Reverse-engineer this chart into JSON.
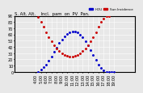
{
  "title": "S. Alt. Alt.    Incl.  pam  on  PV  Pan.",
  "legend_blue": "HOU",
  "legend_red": "Sun Incidence",
  "bg_color": "#e8e8e8",
  "plot_bg": "#e8e8e8",
  "grid_color": "#ffffff",
  "blue_color": "#0000cc",
  "red_color": "#cc0000",
  "ylim": [
    0,
    90
  ],
  "xlim": [
    0,
    23
  ],
  "xlabel_fontsize": 3.5,
  "ylabel_fontsize": 3.5,
  "title_fontsize": 3.8,
  "sun_altitude_x": [
    4.5,
    5.0,
    5.5,
    6.0,
    6.5,
    7.0,
    7.5,
    8.0,
    8.5,
    9.0,
    9.5,
    10.0,
    10.5,
    11.0,
    11.5,
    12.0,
    12.5,
    13.0,
    13.5,
    14.0,
    14.5,
    15.0,
    15.5,
    16.0,
    16.5,
    17.0,
    17.5,
    18.0,
    18.5,
    19.0
  ],
  "sun_altitude_y": [
    0,
    3,
    7,
    12,
    18,
    25,
    32,
    39,
    46,
    52,
    57,
    61,
    64,
    65,
    65,
    63,
    60,
    55,
    49,
    42,
    35,
    27,
    19,
    12,
    6,
    2,
    0,
    0,
    0,
    0
  ],
  "incidence_x": [
    4.5,
    5.0,
    5.5,
    6.0,
    6.5,
    7.0,
    7.5,
    8.0,
    8.5,
    9.0,
    9.5,
    10.0,
    10.5,
    11.0,
    11.5,
    12.0,
    12.5,
    13.0,
    13.5,
    14.0,
    14.5,
    15.0,
    15.5,
    16.0,
    16.5,
    17.0,
    17.5,
    18.0
  ],
  "incidence_y": [
    88,
    80,
    72,
    64,
    56,
    49,
    43,
    37,
    33,
    29,
    27,
    26,
    25,
    25,
    26,
    27,
    29,
    33,
    37,
    43,
    49,
    56,
    64,
    72,
    80,
    86,
    89,
    90
  ],
  "xtick_labels": [
    "4:00",
    "5:00",
    "6:00",
    "7:00",
    "8:00",
    "9:00",
    "10:00",
    "11:00",
    "12:00",
    "13:00",
    "14:00",
    "15:00",
    "16:00",
    "17:00",
    "18:00",
    "19:00"
  ],
  "xtick_positions": [
    4,
    5,
    6,
    7,
    8,
    9,
    10,
    11,
    12,
    13,
    14,
    15,
    16,
    17,
    18,
    19
  ],
  "ytick_positions": [
    0,
    10,
    20,
    30,
    40,
    50,
    60,
    70,
    80,
    90
  ],
  "ytick_labels": [
    "0",
    "10",
    "20",
    "30",
    "40",
    "50",
    "60",
    "70",
    "80",
    "90"
  ]
}
